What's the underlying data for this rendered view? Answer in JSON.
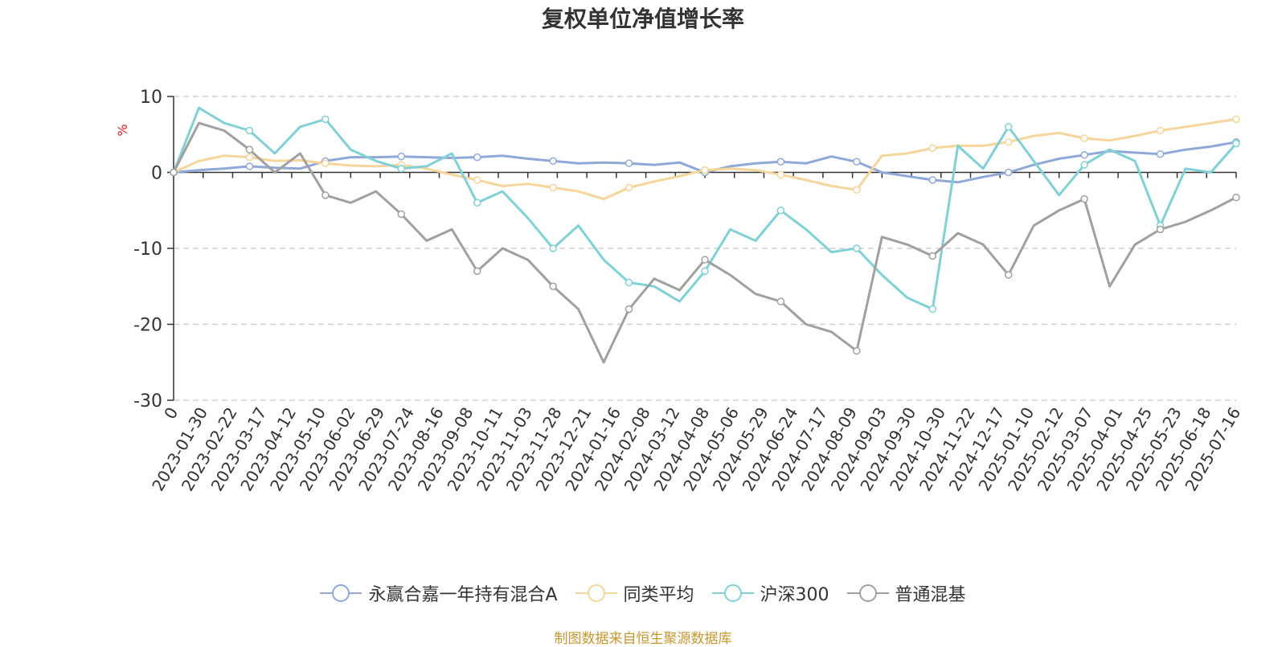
{
  "chart_data": {
    "type": "line",
    "title": "复权单位净值增长率",
    "ylabel": "%",
    "ylim": [
      -30,
      10
    ],
    "y_ticks": [
      "10",
      "0",
      "-10",
      "-20",
      "-30"
    ],
    "x_tick_labels": [
      "0",
      "2023-01-30",
      "2023-02-22",
      "2023-03-17",
      "2023-04-12",
      "2023-05-10",
      "2023-06-02",
      "2023-06-29",
      "2023-07-24",
      "2023-08-16",
      "2023-09-08",
      "2023-10-11",
      "2023-11-03",
      "2023-11-28",
      "2023-12-21",
      "2024-01-16",
      "2024-02-08",
      "2024-03-12",
      "2024-04-08",
      "2024-05-06",
      "2024-05-29",
      "2024-06-24",
      "2024-07-17",
      "2024-08-09",
      "2024-09-03",
      "2024-09-30",
      "2024-10-30",
      "2024-11-22",
      "2024-12-17",
      "2025-01-10",
      "2025-02-12",
      "2025-03-07",
      "2025-04-01",
      "2025-04-25",
      "2025-05-23",
      "2025-06-18",
      "2025-07-16"
    ],
    "grid": true,
    "legend_position": "bottom",
    "series": [
      {
        "name": "永赢合嘉一年持有混合A",
        "color": "#8fa8d8",
        "values": [
          0,
          0.3,
          0.5,
          0.8,
          0.6,
          0.5,
          1.5,
          2.0,
          2.0,
          2.1,
          2.0,
          1.9,
          2.0,
          2.2,
          1.8,
          1.5,
          1.2,
          1.3,
          1.2,
          1.0,
          1.3,
          0,
          0.8,
          1.2,
          1.4,
          1.2,
          2.1,
          1.4,
          0,
          -0.5,
          -1.0,
          -1.3,
          -0.6,
          0,
          1.0,
          1.8,
          2.3,
          2.8,
          2.6,
          2.4,
          3.0,
          3.4,
          4.0
        ]
      },
      {
        "name": "同类平均",
        "color": "#f5d59a",
        "values": [
          0,
          1.5,
          2.2,
          2.0,
          1.5,
          1.6,
          1.2,
          0.9,
          0.8,
          1.0,
          0.5,
          -0.3,
          -1.0,
          -1.8,
          -1.5,
          -2.0,
          -2.5,
          -3.5,
          -2.0,
          -1.2,
          -0.5,
          0.3,
          0.5,
          0.3,
          -0.3,
          -1.0,
          -1.8,
          -2.3,
          2.2,
          2.5,
          3.2,
          3.5,
          3.5,
          4.0,
          4.8,
          5.2,
          4.5,
          4.2,
          4.8,
          5.5,
          6.0,
          6.5,
          7.0
        ]
      },
      {
        "name": "沪深300",
        "color": "#7fd1d6",
        "values": [
          0,
          8.5,
          6.5,
          5.5,
          2.5,
          6.0,
          7.0,
          3.0,
          1.5,
          0.5,
          0.8,
          2.5,
          -4.0,
          -2.5,
          -6.0,
          -10.0,
          -7.0,
          -11.5,
          -14.5,
          -15.0,
          -17.0,
          -13.0,
          -7.5,
          -9.0,
          -5.0,
          -7.5,
          -10.5,
          -10.0,
          -13.5,
          -16.5,
          -18.0,
          3.5,
          0.5,
          6.0,
          1.5,
          -3.0,
          1.0,
          3.0,
          1.5,
          -7.0,
          0.5,
          0.0,
          3.8
        ]
      },
      {
        "name": "普通混基",
        "color": "#a0a0a0",
        "values": [
          0,
          6.5,
          5.5,
          3.0,
          0.0,
          2.5,
          -3.0,
          -4.0,
          -2.5,
          -5.5,
          -9.0,
          -7.5,
          -13.0,
          -10.0,
          -11.5,
          -15.0,
          -18.0,
          -25.0,
          -18.0,
          -14.0,
          -15.5,
          -11.5,
          -13.5,
          -16.0,
          -17.0,
          -20.0,
          -21.0,
          -23.5,
          -8.5,
          -9.5,
          -11.0,
          -8.0,
          -9.5,
          -13.5,
          -7.0,
          -5.0,
          -3.5,
          -15.0,
          -9.5,
          -7.5,
          -6.5,
          -5.0,
          -3.3
        ]
      }
    ]
  },
  "legend_items": [
    "永赢合嘉一年持有混合A",
    "同类平均",
    "沪深300",
    "普通混基"
  ],
  "source_note": "制图数据来自恒生聚源数据库"
}
